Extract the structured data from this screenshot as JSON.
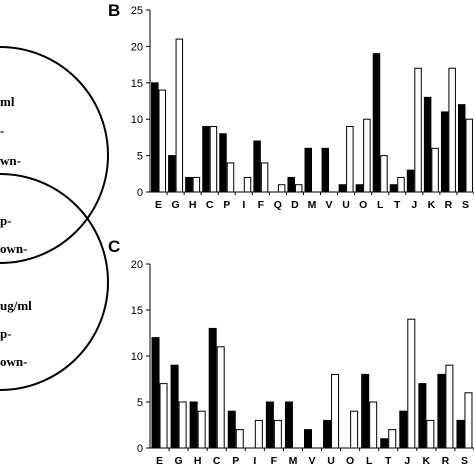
{
  "venn": {
    "lines": [
      "ml",
      "-",
      "wn-",
      "p-",
      "own-",
      "ug/ml",
      "p-",
      "own-"
    ]
  },
  "chart_data": [
    {
      "type": "bar",
      "panel": "B",
      "categories": [
        "E",
        "G",
        "H",
        "C",
        "P",
        "I",
        "F",
        "Q",
        "D",
        "M",
        "V",
        "U",
        "O",
        "L",
        "T",
        "J",
        "K",
        "R",
        "S"
      ],
      "ylim": [
        0,
        25
      ],
      "yticks": [
        0,
        5,
        10,
        15,
        20,
        25
      ],
      "series": [
        {
          "fill": "#000000",
          "values": [
            15,
            5,
            2,
            9,
            8,
            0,
            7,
            0,
            2,
            6,
            6,
            1,
            1,
            19,
            1,
            3,
            13,
            11,
            12
          ]
        },
        {
          "fill": "#ffffff",
          "values": [
            14,
            21,
            2,
            9,
            4,
            2,
            4,
            1,
            1,
            0,
            0,
            9,
            10,
            5,
            2,
            17,
            6,
            17,
            10
          ]
        }
      ]
    },
    {
      "type": "bar",
      "panel": "C",
      "categories": [
        "E",
        "G",
        "H",
        "C",
        "P",
        "I",
        "F",
        "M",
        "V",
        "U",
        "O",
        "L",
        "T",
        "J",
        "K",
        "R",
        "S"
      ],
      "ylim": [
        0,
        20
      ],
      "yticks": [
        0,
        5,
        10,
        15,
        20
      ],
      "series": [
        {
          "fill": "#000000",
          "values": [
            12,
            9,
            5,
            13,
            4,
            0,
            5,
            5,
            2,
            3,
            0,
            8,
            1,
            4,
            7,
            8,
            3
          ]
        },
        {
          "fill": "#ffffff",
          "values": [
            7,
            5,
            4,
            11,
            2,
            3,
            3,
            0,
            0,
            8,
            4,
            5,
            2,
            14,
            3,
            9,
            6
          ]
        }
      ]
    }
  ]
}
